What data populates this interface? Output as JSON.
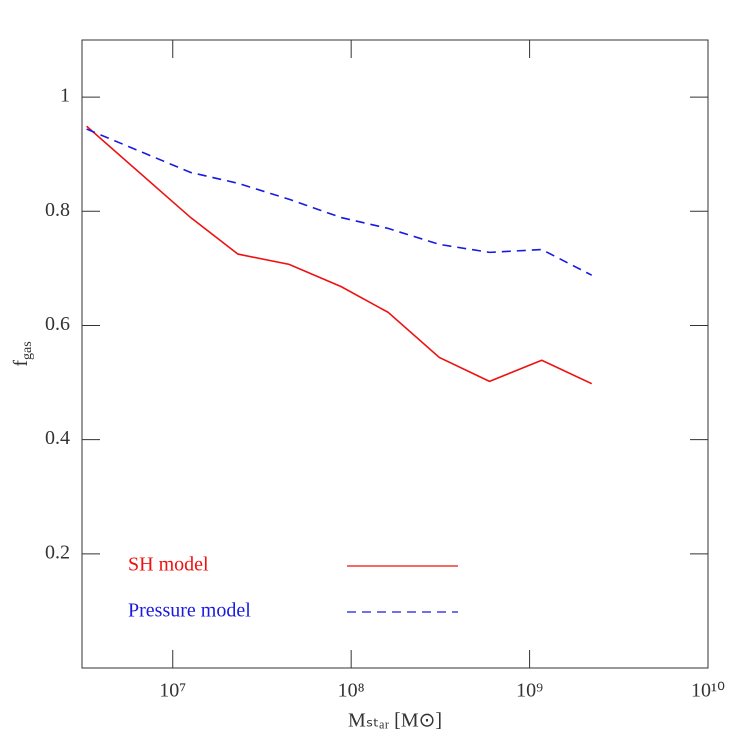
{
  "chart_data": {
    "type": "line",
    "xlabel": "Mₛₜₐᵣ [M⊙]",
    "ylabel": {
      "text": "f",
      "subscript": "gas"
    },
    "xscale": "log",
    "xlim": [
      3100000,
      10000000000
    ],
    "xticks": [
      {
        "value": 10000000,
        "label": "10⁷"
      },
      {
        "value": 100000000,
        "label": "10⁸"
      },
      {
        "value": 1000000000,
        "label": "10⁹"
      },
      {
        "value": 10000000000,
        "label": "10¹⁰"
      }
    ],
    "ylim": [
      0,
      1.1
    ],
    "yticks": [
      0.2,
      0.4,
      0.6,
      0.8,
      1
    ],
    "legend": "lower left",
    "series": [
      {
        "name": "SH model",
        "color": "#ee1111",
        "dash": "solid",
        "x": [
          3290000,
          12600000,
          23200000,
          44900000,
          87900000,
          161000000,
          312000000,
          596000000,
          1170000000,
          2230000000
        ],
        "values": [
          0.949,
          0.789,
          0.725,
          0.707,
          0.668,
          0.623,
          0.544,
          0.502,
          0.539,
          0.498
        ]
      },
      {
        "name": "Pressure model",
        "color": "#1a1adf",
        "dash": "dashed",
        "x": [
          3290000,
          12600000,
          23200000,
          44900000,
          87900000,
          161000000,
          312000000,
          596000000,
          1170000000,
          2230000000
        ],
        "values": [
          0.944,
          0.868,
          0.849,
          0.821,
          0.789,
          0.77,
          0.742,
          0.728,
          0.733,
          0.688
        ]
      }
    ]
  }
}
